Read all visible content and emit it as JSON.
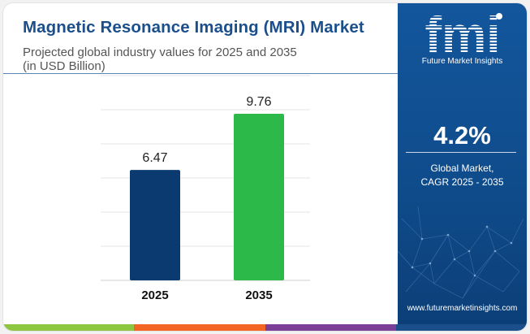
{
  "header": {
    "title": "Magnetic Resonance Imaging (MRI) Market",
    "subtitle_line1": "Projected global industry values for 2025 and 2035",
    "subtitle_line2": "(in USD Billion)"
  },
  "chart_data": {
    "type": "bar",
    "categories": [
      "2025",
      "2035"
    ],
    "values": [
      6.47,
      9.76
    ],
    "value_labels": [
      "6.47",
      "9.76"
    ],
    "bar_colors": [
      "#0a3a70",
      "#2db84a"
    ],
    "ylim": [
      0,
      12
    ],
    "grid": true,
    "title": "",
    "xlabel": "",
    "ylabel": ""
  },
  "panel": {
    "logo_text": "fmi",
    "logo_subtitle": "Future Market Insights",
    "cagr_value": "4.2%",
    "cagr_label_line1": "Global Market,",
    "cagr_label_line2": "CAGR 2025 - 2035",
    "website": "www.futuremarketinsights.com"
  },
  "colors": {
    "title": "#1a4f8c",
    "panel_bg": "#0f4c8c",
    "strip": [
      "#8dc63f",
      "#f26522",
      "#7b3f98",
      "#1a4f8c"
    ]
  }
}
